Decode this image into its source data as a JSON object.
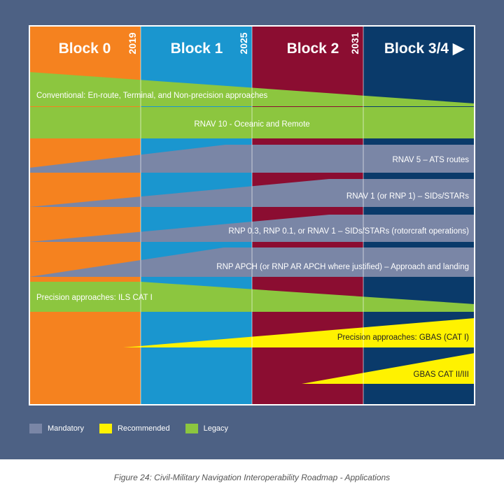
{
  "colors": {
    "background": "#4d6184",
    "mandatory": "#7a86a6",
    "recommended": "#fff200",
    "legacy": "#8cc63f",
    "block0": "#f5821f",
    "block1": "#1a96cf",
    "block2": "#8b0d31",
    "block34": "#0a3a6a"
  },
  "blocks": [
    {
      "title": "Block 0",
      "year": "2019"
    },
    {
      "title": "Block 1",
      "year": "2025"
    },
    {
      "title": "Block 2",
      "year": "2031"
    },
    {
      "title": "Block 3/4 ▶",
      "year": ""
    }
  ],
  "bands": [
    {
      "label": "Conventional: En-route, Terminal, and Non-precision approaches",
      "category": "legacy"
    },
    {
      "label": "RNAV 10  - Oceanic and Remote",
      "category": "legacy"
    },
    {
      "label": "RNAV 5 – ATS routes",
      "category": "mandatory"
    },
    {
      "label": "RNAV 1 (or RNP 1) – SIDs/STARs",
      "category": "mandatory"
    },
    {
      "label": "RNP 0.3, RNP 0.1, or RNAV 1 – SIDs/STARs (rotorcraft operations)",
      "category": "mandatory"
    },
    {
      "label": "RNP APCH (or RNP AR APCH where justified) – Approach and landing",
      "category": "mandatory"
    },
    {
      "label": "Precision approaches: ILS CAT I",
      "category": "legacy"
    },
    {
      "label": "Precision approaches: GBAS (CAT I)",
      "category": "recommended"
    },
    {
      "label": "GBAS CAT II/III",
      "category": "recommended"
    }
  ],
  "legend": [
    {
      "label": "Mandatory",
      "category": "mandatory"
    },
    {
      "label": "Recommended",
      "category": "recommended"
    },
    {
      "label": "Legacy",
      "category": "legacy"
    }
  ],
  "caption": "Figure 24: Civil-Military Navigation Interoperability Roadmap - Applications"
}
